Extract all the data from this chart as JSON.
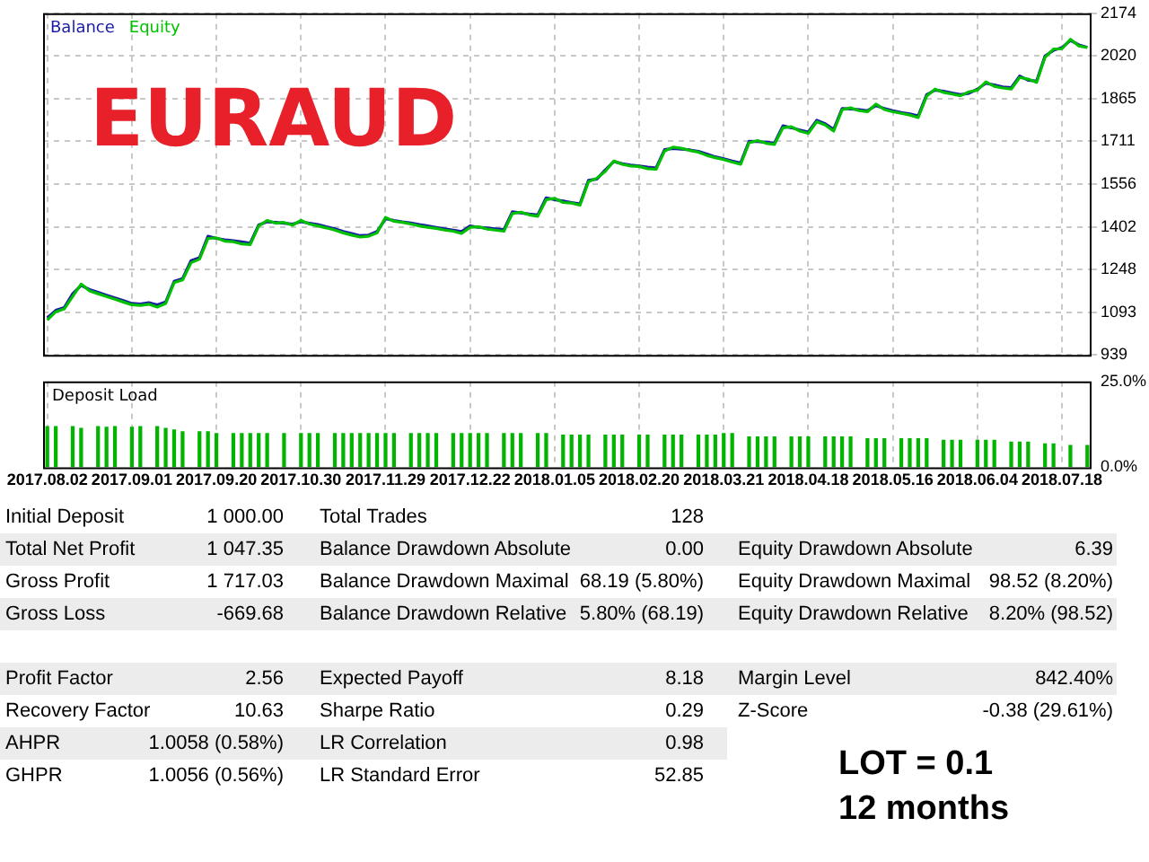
{
  "chart_data": [
    {
      "type": "line",
      "title": "EURAUD",
      "tick_labels": "y",
      "grid": true,
      "legend": "top left",
      "marker": "none",
      "ylim": [
        939,
        2174
      ],
      "yticks": [
        939,
        1093,
        1248,
        1402,
        1556,
        1711,
        1865,
        2020,
        2174
      ],
      "categories": [
        "2017.08.02",
        null,
        null,
        null,
        null,
        null,
        null,
        null,
        null,
        null,
        "2017.09.01",
        null,
        null,
        null,
        null,
        null,
        null,
        null,
        null,
        null,
        "2017.09.20",
        null,
        null,
        null,
        null,
        null,
        null,
        null,
        null,
        null,
        "2017.10.30",
        null,
        null,
        null,
        null,
        null,
        null,
        null,
        null,
        null,
        "2017.11.29",
        null,
        null,
        null,
        null,
        null,
        null,
        null,
        null,
        null,
        "2017.12.22",
        null,
        null,
        null,
        null,
        null,
        null,
        null,
        null,
        null,
        "2018.01.05",
        null,
        null,
        null,
        null,
        null,
        null,
        null,
        null,
        null,
        "2018.02.20",
        null,
        null,
        null,
        null,
        null,
        null,
        null,
        null,
        null,
        "2018.03.21",
        null,
        null,
        null,
        null,
        null,
        null,
        null,
        null,
        null,
        "2018.04.18",
        null,
        null,
        null,
        null,
        null,
        null,
        null,
        null,
        null,
        "2018.05.16",
        null,
        null,
        null,
        null,
        null,
        null,
        null,
        null,
        null,
        "2018.06.04",
        null,
        null,
        null,
        null,
        null,
        null,
        null,
        null,
        null,
        "2018.07.18",
        null,
        null,
        null
      ],
      "series": [
        {
          "name": "Equity",
          "color": "#00c000",
          "values": [
            1065,
            1095,
            1105,
            1150,
            1195,
            1170,
            1160,
            1150,
            1140,
            1130,
            1120,
            1118,
            1122,
            1112,
            1125,
            1200,
            1210,
            1272,
            1285,
            1360,
            1362,
            1350,
            1348,
            1340,
            1338,
            1405,
            1425,
            1415,
            1418,
            1408,
            1425,
            1412,
            1405,
            1398,
            1390,
            1380,
            1372,
            1365,
            1368,
            1380,
            1436,
            1422,
            1418,
            1412,
            1405,
            1400,
            1396,
            1390,
            1386,
            1378,
            1400,
            1402,
            1394,
            1390,
            1386,
            1450,
            1455,
            1445,
            1440,
            1500,
            1505,
            1490,
            1488,
            1480,
            1565,
            1578,
            1603,
            1640,
            1628,
            1622,
            1620,
            1612,
            1610,
            1676,
            1690,
            1686,
            1678,
            1672,
            1660,
            1652,
            1645,
            1636,
            1628,
            1706,
            1714,
            1704,
            1700,
            1760,
            1764,
            1748,
            1740,
            1782,
            1770,
            1748,
            1825,
            1832,
            1822,
            1818,
            1846,
            1826,
            1818,
            1812,
            1806,
            1797,
            1875,
            1900,
            1888,
            1882,
            1876,
            1890,
            1896,
            1926,
            1910,
            1904,
            1900,
            1942,
            1936,
            1924,
            2015,
            2045,
            2046,
            2080,
            2056,
            2050
          ]
        },
        {
          "name": "Balance",
          "color": "#1a1aa6",
          "values": [
            1073,
            1100,
            1110,
            1160,
            1190,
            1175,
            1165,
            1155,
            1145,
            1135,
            1125,
            1123,
            1128,
            1120,
            1130,
            1205,
            1215,
            1280,
            1290,
            1368,
            1360,
            1355,
            1352,
            1348,
            1343,
            1409,
            1420,
            1418,
            1415,
            1412,
            1420,
            1415,
            1410,
            1402,
            1395,
            1385,
            1378,
            1370,
            1372,
            1385,
            1431,
            1425,
            1420,
            1416,
            1410,
            1405,
            1400,
            1395,
            1390,
            1385,
            1405,
            1400,
            1398,
            1395,
            1392,
            1456,
            1452,
            1448,
            1445,
            1507,
            1500,
            1495,
            1490,
            1485,
            1570,
            1575,
            1608,
            1638,
            1630,
            1625,
            1622,
            1618,
            1615,
            1681,
            1685,
            1683,
            1680,
            1675,
            1665,
            1655,
            1648,
            1640,
            1633,
            1711,
            1710,
            1708,
            1705,
            1767,
            1760,
            1752,
            1745,
            1787,
            1775,
            1754,
            1830,
            1828,
            1826,
            1822,
            1840,
            1830,
            1822,
            1815,
            1810,
            1803,
            1880,
            1896,
            1892,
            1886,
            1880,
            1885,
            1900,
            1921,
            1915,
            1908,
            1905,
            1947,
            1932,
            1929,
            2020,
            2040,
            2050,
            2076,
            2060,
            2051
          ]
        }
      ]
    },
    {
      "type": "bar",
      "title": "Deposit Load",
      "grid": "x",
      "ylim": [
        0,
        25
      ],
      "yticks": [
        {
          "value": 0,
          "label": "0.0%"
        },
        {
          "value": 25,
          "label": "25.0%"
        }
      ],
      "color": "#00b400",
      "categories": [
        "2017.08.02",
        null,
        null,
        null,
        null,
        null,
        null,
        null,
        null,
        null,
        "2017.09.01",
        null,
        null,
        null,
        null,
        null,
        null,
        null,
        null,
        null,
        "2017.09.20",
        null,
        null,
        null,
        null,
        null,
        null,
        null,
        null,
        null,
        "2017.10.30",
        null,
        null,
        null,
        null,
        null,
        null,
        null,
        null,
        null,
        "2017.11.29",
        null,
        null,
        null,
        null,
        null,
        null,
        null,
        null,
        null,
        "2017.12.22",
        null,
        null,
        null,
        null,
        null,
        null,
        null,
        null,
        null,
        "2018.01.05",
        null,
        null,
        null,
        null,
        null,
        null,
        null,
        null,
        null,
        "2018.02.20",
        null,
        null,
        null,
        null,
        null,
        null,
        null,
        null,
        null,
        "2018.03.21",
        null,
        null,
        null,
        null,
        null,
        null,
        null,
        null,
        null,
        "2018.04.18",
        null,
        null,
        null,
        null,
        null,
        null,
        null,
        null,
        null,
        "2018.05.16",
        null,
        null,
        null,
        null,
        null,
        null,
        null,
        null,
        null,
        "2018.06.04",
        null,
        null,
        null,
        null,
        null,
        null,
        null,
        null,
        null,
        "2018.07.18",
        null,
        null,
        null
      ],
      "values": [
        12,
        12,
        null,
        12,
        11.5,
        null,
        12,
        11.8,
        12,
        null,
        11.8,
        12,
        null,
        12,
        11.5,
        11,
        10.5,
        null,
        10.5,
        10.5,
        10,
        null,
        10,
        10,
        10,
        10,
        10,
        null,
        10,
        null,
        10,
        10,
        10,
        null,
        10,
        10,
        10,
        10,
        10,
        10,
        10,
        10,
        null,
        10,
        10,
        10,
        10,
        null,
        10,
        10,
        10,
        10,
        10,
        null,
        10,
        10,
        10,
        null,
        10,
        10,
        null,
        9.5,
        9.5,
        9.5,
        9.5,
        null,
        9.5,
        9.5,
        9.5,
        null,
        9.5,
        9.5,
        null,
        9.5,
        9.5,
        9.5,
        null,
        9.5,
        9.5,
        9.5,
        10,
        10,
        null,
        9,
        9,
        9,
        9,
        null,
        9,
        9,
        9,
        null,
        9,
        9,
        9,
        9,
        null,
        8.5,
        8.5,
        8.5,
        null,
        8.5,
        8.5,
        8.5,
        8.5,
        null,
        8,
        8,
        8,
        null,
        8,
        8,
        8,
        null,
        7.5,
        7.5,
        7.5,
        null,
        7,
        7,
        null,
        6.5,
        null,
        6.5
      ]
    },
    {
      "type": "other",
      "annotations": [
        "Initial Deposit",
        "1 000.00",
        "Total Trades",
        "128",
        "Total Net Profit",
        "1 047.35",
        "Balance Drawdown Absolute",
        "0.00",
        "Equity Drawdown Absolute",
        "6.39",
        "Gross Profit",
        "1 717.03",
        "Balance Drawdown Maximal",
        "68.19 (5.80%)",
        "Equity Drawdown Maximal",
        "98.52 (8.20%)",
        "Gross Loss",
        "-669.68",
        "Balance Drawdown Relative",
        "5.80% (68.19)",
        "Equity Drawdown Relative",
        "8.20% (98.52)",
        "Profit Factor",
        "2.56",
        "Expected Payoff",
        "8.18",
        "Margin Level",
        "842.40%",
        "Recovery Factor",
        "10.63",
        "Sharpe Ratio",
        "0.29",
        "Z-Score",
        "-0.38 (29.61%)",
        "AHPR",
        "1.0058 (0.58%)",
        "LR Correlation",
        "0.98",
        "GHPR",
        "1.0056 (0.56%)",
        "LR Standard Error",
        "52.85",
        "LOT = 0.1",
        "12 months"
      ]
    }
  ]
}
